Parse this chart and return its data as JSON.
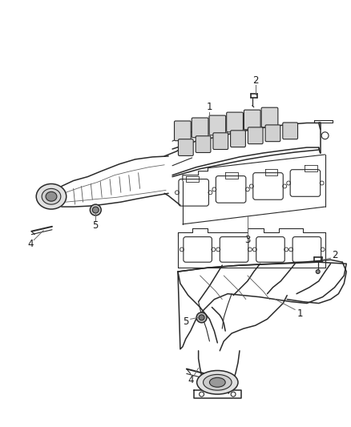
{
  "bg_color": "#ffffff",
  "line_color": "#2a2a2a",
  "label_color": "#2a2a2a",
  "fig_width": 4.38,
  "fig_height": 5.33,
  "dpi": 100
}
